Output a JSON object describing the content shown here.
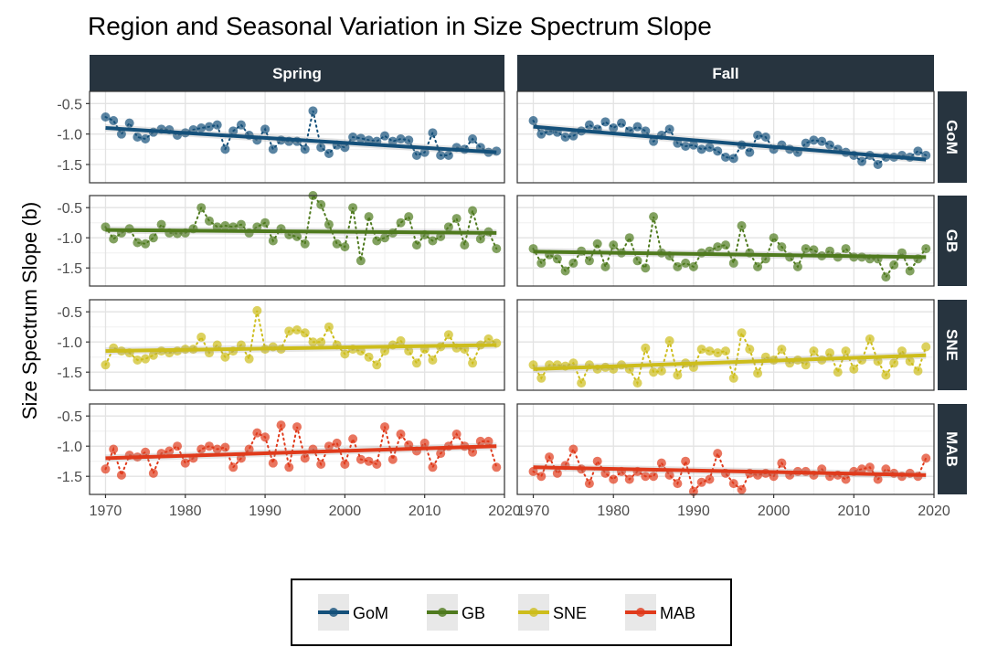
{
  "chart_data": {
    "type": "scatter",
    "title": "Region and Seasonal Variation in Size Spectrum Slope",
    "ylabel": "Size Spectrum Slope (b)",
    "xlabel": "",
    "xlim": [
      1968,
      2020
    ],
    "ylim": [
      -1.8,
      -0.3
    ],
    "x_ticks": [
      1970,
      1980,
      1990,
      2000,
      2010,
      2020
    ],
    "x_tick_labels": [
      "1970",
      "1980",
      "1990",
      "2000",
      "2010",
      "2020"
    ],
    "y_ticks": [
      -0.5,
      -1.0,
      -1.5
    ],
    "y_tick_labels": [
      "-0.5",
      "-1.0",
      "-1.5"
    ],
    "columns": [
      "Spring",
      "Fall"
    ],
    "rows": [
      "GoM",
      "GB",
      "SNE",
      "MAB"
    ],
    "grid": true,
    "legend_position": "bottom",
    "legend": [
      "GoM",
      "GB",
      "SNE",
      "MAB"
    ],
    "colors": {
      "GoM": "#14507a",
      "GB": "#4f7a1e",
      "SNE": "#cdbd1b",
      "MAB": "#e03a1b"
    },
    "years": [
      1970,
      1971,
      1972,
      1973,
      1974,
      1975,
      1976,
      1977,
      1978,
      1979,
      1980,
      1981,
      1982,
      1983,
      1984,
      1985,
      1986,
      1987,
      1988,
      1989,
      1990,
      1991,
      1992,
      1993,
      1994,
      1995,
      1996,
      1997,
      1998,
      1999,
      2000,
      2001,
      2002,
      2003,
      2004,
      2005,
      2006,
      2007,
      2008,
      2009,
      2010,
      2011,
      2012,
      2013,
      2014,
      2015,
      2016,
      2017,
      2018,
      2019
    ],
    "panels": [
      {
        "region": "GoM",
        "season": "Spring",
        "values": [
          -0.72,
          -0.78,
          -1.0,
          -0.82,
          -1.05,
          -1.08,
          -0.97,
          -0.92,
          -0.93,
          -1.02,
          -0.98,
          -0.93,
          -0.9,
          -0.88,
          -0.85,
          -1.25,
          -0.95,
          -0.85,
          -1.02,
          -1.1,
          -0.92,
          -1.25,
          -1.1,
          -1.12,
          -1.12,
          -1.25,
          -0.62,
          -1.22,
          -1.32,
          -1.18,
          -1.22,
          -1.05,
          -1.07,
          -1.1,
          -1.12,
          -1.03,
          -1.12,
          -1.08,
          -1.1,
          -1.35,
          -1.3,
          -0.98,
          -1.35,
          -1.35,
          -1.22,
          -1.25,
          -1.08,
          -1.22,
          -1.3,
          -1.28
        ],
        "trend": [
          -0.9,
          -1.3
        ]
      },
      {
        "region": "GoM",
        "season": "Fall",
        "values": [
          -0.78,
          -1.0,
          -0.95,
          -0.97,
          -1.05,
          -1.03,
          -0.95,
          -0.85,
          -0.92,
          -0.8,
          -0.9,
          -0.82,
          -0.95,
          -0.88,
          -0.95,
          -1.12,
          -1.02,
          -0.92,
          -1.15,
          -1.2,
          -1.18,
          -1.25,
          -1.22,
          -1.28,
          -1.38,
          -1.4,
          -1.18,
          -1.3,
          -1.02,
          -1.05,
          -1.25,
          -1.18,
          -1.25,
          -1.3,
          -1.15,
          -1.1,
          -1.12,
          -1.18,
          -1.25,
          -1.3,
          -1.35,
          -1.45,
          -1.35,
          -1.5,
          -1.38,
          -1.38,
          -1.35,
          -1.38,
          -1.28,
          -1.35
        ],
        "trend": [
          -0.88,
          -1.42
        ]
      },
      {
        "region": "GB",
        "season": "Spring",
        "values": [
          -0.82,
          -1.02,
          -0.92,
          -0.85,
          -1.08,
          -1.1,
          -1.0,
          -0.78,
          -0.92,
          -0.93,
          -0.92,
          -0.85,
          -0.5,
          -0.72,
          -0.82,
          -0.8,
          -0.82,
          -0.78,
          -0.92,
          -0.82,
          -0.75,
          -1.05,
          -0.85,
          -0.95,
          -0.98,
          -1.1,
          -0.3,
          -0.45,
          -0.78,
          -1.1,
          -1.15,
          -0.5,
          -1.38,
          -0.65,
          -1.05,
          -1.0,
          -0.92,
          -0.75,
          -0.65,
          -1.12,
          -0.95,
          -1.05,
          -0.98,
          -0.82,
          -0.68,
          -1.12,
          -0.55,
          -1.02,
          -0.9,
          -1.18
        ],
        "trend": [
          -0.87,
          -0.92
        ]
      },
      {
        "region": "GB",
        "season": "Fall",
        "values": [
          -1.18,
          -1.42,
          -1.28,
          -1.35,
          -1.55,
          -1.42,
          -1.22,
          -1.38,
          -1.1,
          -1.48,
          -1.12,
          -1.25,
          -1.0,
          -1.38,
          -1.5,
          -0.65,
          -1.25,
          -1.3,
          -1.48,
          -1.42,
          -1.48,
          -1.25,
          -1.22,
          -1.15,
          -1.12,
          -1.42,
          -0.8,
          -1.25,
          -1.48,
          -1.35,
          -1.0,
          -1.15,
          -1.32,
          -1.48,
          -1.18,
          -1.2,
          -1.3,
          -1.22,
          -1.32,
          -1.18,
          -1.32,
          -1.32,
          -1.35,
          -1.35,
          -1.65,
          -1.45,
          -1.25,
          -1.55,
          -1.35,
          -1.18
        ],
        "trend": [
          -1.23,
          -1.32
        ]
      },
      {
        "region": "SNE",
        "season": "Spring",
        "values": [
          -1.38,
          -1.1,
          -1.15,
          -1.18,
          -1.3,
          -1.28,
          -1.22,
          -1.15,
          -1.18,
          -1.15,
          -1.12,
          -1.12,
          -0.92,
          -1.18,
          -1.05,
          -1.25,
          -1.15,
          -1.05,
          -1.28,
          -0.48,
          -1.12,
          -1.08,
          -1.12,
          -0.82,
          -0.8,
          -0.85,
          -1.0,
          -1.0,
          -0.75,
          -1.05,
          -1.2,
          -1.12,
          -1.15,
          -1.25,
          -1.38,
          -1.15,
          -1.05,
          -0.98,
          -1.15,
          -1.35,
          -1.12,
          -1.3,
          -1.08,
          -0.88,
          -1.1,
          -1.12,
          -1.35,
          -1.05,
          -0.95,
          -1.02
        ],
        "trend": [
          -1.15,
          -1.05
        ]
      },
      {
        "region": "SNE",
        "season": "Fall",
        "values": [
          -1.38,
          -1.6,
          -1.38,
          -1.38,
          -1.4,
          -1.35,
          -1.68,
          -1.38,
          -1.45,
          -1.42,
          -1.45,
          -1.38,
          -1.45,
          -1.68,
          -1.1,
          -1.5,
          -1.48,
          -0.98,
          -1.55,
          -1.35,
          -1.42,
          -1.12,
          -1.15,
          -1.18,
          -1.15,
          -1.6,
          -0.85,
          -1.12,
          -1.52,
          -1.25,
          -1.3,
          -1.12,
          -1.35,
          -1.3,
          -1.38,
          -1.15,
          -1.3,
          -1.18,
          -1.5,
          -1.15,
          -1.45,
          -1.3,
          -0.95,
          -1.32,
          -1.55,
          -1.35,
          -1.15,
          -1.32,
          -1.48,
          -1.08
        ],
        "trend": [
          -1.45,
          -1.22
        ]
      },
      {
        "region": "MAB",
        "season": "Spring",
        "values": [
          -1.38,
          -1.05,
          -1.48,
          -1.15,
          -1.18,
          -1.1,
          -1.45,
          -1.12,
          -1.08,
          -1.0,
          -1.28,
          -1.2,
          -1.05,
          -1.0,
          -1.05,
          -1.02,
          -1.35,
          -1.2,
          -1.05,
          -0.78,
          -0.85,
          -1.28,
          -0.65,
          -1.35,
          -0.68,
          -1.2,
          -1.05,
          -1.3,
          -1.0,
          -0.95,
          -1.3,
          -0.88,
          -1.22,
          -1.25,
          -1.3,
          -0.68,
          -1.22,
          -0.8,
          -0.98,
          -1.08,
          -0.95,
          -1.35,
          -1.12,
          -1.0,
          -0.8,
          -1.0,
          -1.1,
          -0.92,
          -0.92,
          -1.35
        ],
        "trend": [
          -1.2,
          -1.0
        ]
      },
      {
        "region": "MAB",
        "season": "Fall",
        "values": [
          -1.42,
          -1.5,
          -1.18,
          -1.45,
          -1.32,
          -1.05,
          -1.38,
          -1.62,
          -1.25,
          -1.45,
          -1.55,
          -1.42,
          -1.55,
          -1.42,
          -1.5,
          -1.5,
          -1.28,
          -1.48,
          -1.62,
          -1.25,
          -1.75,
          -1.6,
          -1.55,
          -1.12,
          -1.45,
          -1.62,
          -1.72,
          -1.45,
          -1.48,
          -1.45,
          -1.5,
          -1.28,
          -1.48,
          -1.42,
          -1.42,
          -1.48,
          -1.38,
          -1.5,
          -1.48,
          -1.55,
          -1.42,
          -1.38,
          -1.35,
          -1.55,
          -1.38,
          -1.45,
          -1.5,
          -1.45,
          -1.5,
          -1.2
        ],
        "trend": [
          -1.35,
          -1.48
        ]
      }
    ]
  }
}
